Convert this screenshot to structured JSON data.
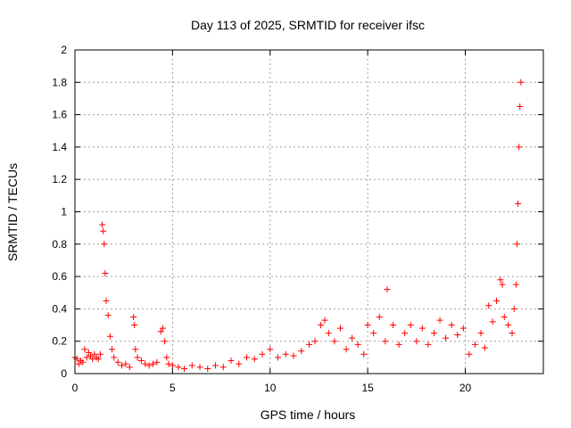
{
  "chart_data": {
    "type": "scatter",
    "title": "Day 113 of 2025, SRMTID for receiver ifsc",
    "xlabel": "GPS time / hours",
    "ylabel": "SRMTID / TECUs",
    "xlim": [
      0,
      24
    ],
    "ylim": [
      0,
      2
    ],
    "xticks": [
      0,
      5,
      10,
      15,
      20
    ],
    "yticks": [
      0,
      0.2,
      0.4,
      0.6,
      0.8,
      1,
      1.2,
      1.4,
      1.6,
      1.8,
      2
    ],
    "ytick_labels": [
      "0",
      "0.2",
      "0.4",
      "0.6",
      "0.8",
      "1",
      "1.2",
      "1.4",
      "1.6",
      "1.8",
      "2"
    ],
    "grid": true,
    "marker": "+",
    "color": "#ff0000",
    "series": [
      {
        "name": "SRMTID",
        "x": [
          0.0,
          0.1,
          0.2,
          0.3,
          0.4,
          0.5,
          0.6,
          0.7,
          0.8,
          0.9,
          1.0,
          1.1,
          1.2,
          1.3,
          1.4,
          1.45,
          1.5,
          1.55,
          1.6,
          1.7,
          1.8,
          1.9,
          2.0,
          2.2,
          2.4,
          2.6,
          2.8,
          3.0,
          3.05,
          3.1,
          3.2,
          3.4,
          3.6,
          3.8,
          4.0,
          4.2,
          4.4,
          4.5,
          4.6,
          4.7,
          4.8,
          5.0,
          5.3,
          5.6,
          6.0,
          6.4,
          6.8,
          7.2,
          7.6,
          8.0,
          8.4,
          8.8,
          9.2,
          9.6,
          10.0,
          10.4,
          10.8,
          11.2,
          11.6,
          12.0,
          12.3,
          12.6,
          12.8,
          13.0,
          13.3,
          13.6,
          13.9,
          14.2,
          14.5,
          14.8,
          15.0,
          15.3,
          15.6,
          15.9,
          16.0,
          16.3,
          16.6,
          16.9,
          17.2,
          17.5,
          17.8,
          18.1,
          18.4,
          18.7,
          19.0,
          19.3,
          19.6,
          19.9,
          20.2,
          20.5,
          20.8,
          21.0,
          21.2,
          21.4,
          21.6,
          21.8,
          21.9,
          22.0,
          22.2,
          22.4,
          22.5,
          22.6,
          22.65,
          22.7,
          22.75,
          22.8,
          22.85
        ],
        "y": [
          0.1,
          0.09,
          0.06,
          0.08,
          0.07,
          0.15,
          0.1,
          0.13,
          0.11,
          0.09,
          0.12,
          0.1,
          0.09,
          0.12,
          0.92,
          0.88,
          0.8,
          0.62,
          0.45,
          0.36,
          0.23,
          0.15,
          0.1,
          0.07,
          0.05,
          0.06,
          0.04,
          0.35,
          0.3,
          0.15,
          0.1,
          0.08,
          0.06,
          0.05,
          0.06,
          0.07,
          0.26,
          0.28,
          0.2,
          0.1,
          0.06,
          0.05,
          0.04,
          0.03,
          0.05,
          0.04,
          0.03,
          0.05,
          0.04,
          0.08,
          0.06,
          0.1,
          0.09,
          0.12,
          0.15,
          0.1,
          0.12,
          0.11,
          0.14,
          0.18,
          0.2,
          0.3,
          0.33,
          0.25,
          0.2,
          0.28,
          0.15,
          0.22,
          0.18,
          0.12,
          0.3,
          0.25,
          0.35,
          0.2,
          0.52,
          0.3,
          0.18,
          0.25,
          0.3,
          0.2,
          0.28,
          0.18,
          0.25,
          0.33,
          0.22,
          0.3,
          0.24,
          0.28,
          0.12,
          0.18,
          0.25,
          0.16,
          0.42,
          0.32,
          0.45,
          0.58,
          0.55,
          0.35,
          0.3,
          0.25,
          0.4,
          0.55,
          0.8,
          1.05,
          1.4,
          1.65,
          1.8
        ]
      }
    ]
  }
}
